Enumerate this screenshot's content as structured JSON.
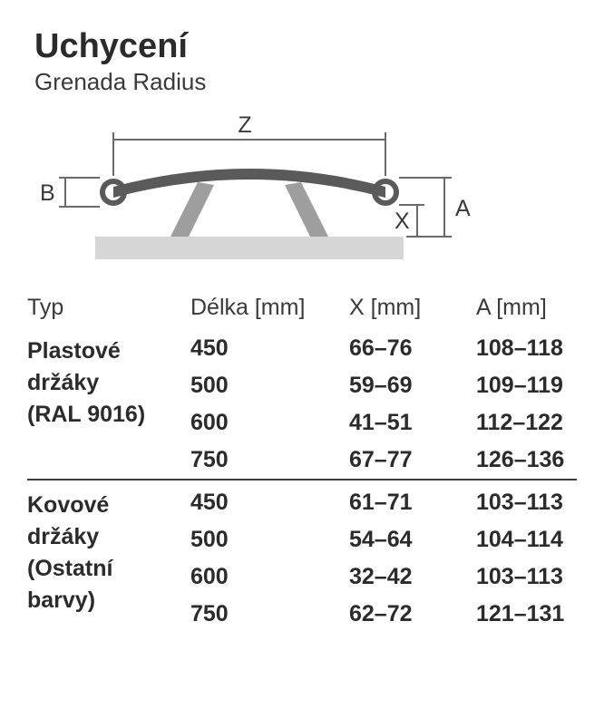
{
  "heading": "Uchycení",
  "subheading": "Grenada Radius",
  "diagram": {
    "labels": {
      "Z": "Z",
      "B": "B",
      "X": "X",
      "A": "A"
    },
    "colors": {
      "dark": "#5a5a5a",
      "light": "#d6d6d6",
      "line": "#6a6a6a",
      "text": "#3a3a3a"
    },
    "label_fontsize": 25
  },
  "table": {
    "columns": [
      "Typ",
      "Délka [mm]",
      "X [mm]",
      "A [mm]"
    ],
    "header_fontsize": 25,
    "cell_fontsize": 25,
    "text_color": "#2b2b2b",
    "border_color": "#3a3a3a",
    "groups": [
      {
        "label_lines": [
          "Plastové",
          "držáky",
          "(RAL 9016)"
        ],
        "rows": [
          [
            "450",
            "66–76",
            "108–118"
          ],
          [
            "500",
            "59–69",
            "109–119"
          ],
          [
            "600",
            "41–51",
            "112–122"
          ],
          [
            "750",
            "67–77",
            "126–136"
          ]
        ]
      },
      {
        "label_lines": [
          "Kovové",
          "držáky",
          "(Ostatní",
          "barvy)"
        ],
        "rows": [
          [
            "450",
            "61–71",
            "103–113"
          ],
          [
            "500",
            "54–64",
            "104–114"
          ],
          [
            "600",
            "32–42",
            "103–113"
          ],
          [
            "750",
            "62–72",
            "121–131"
          ]
        ]
      }
    ]
  }
}
